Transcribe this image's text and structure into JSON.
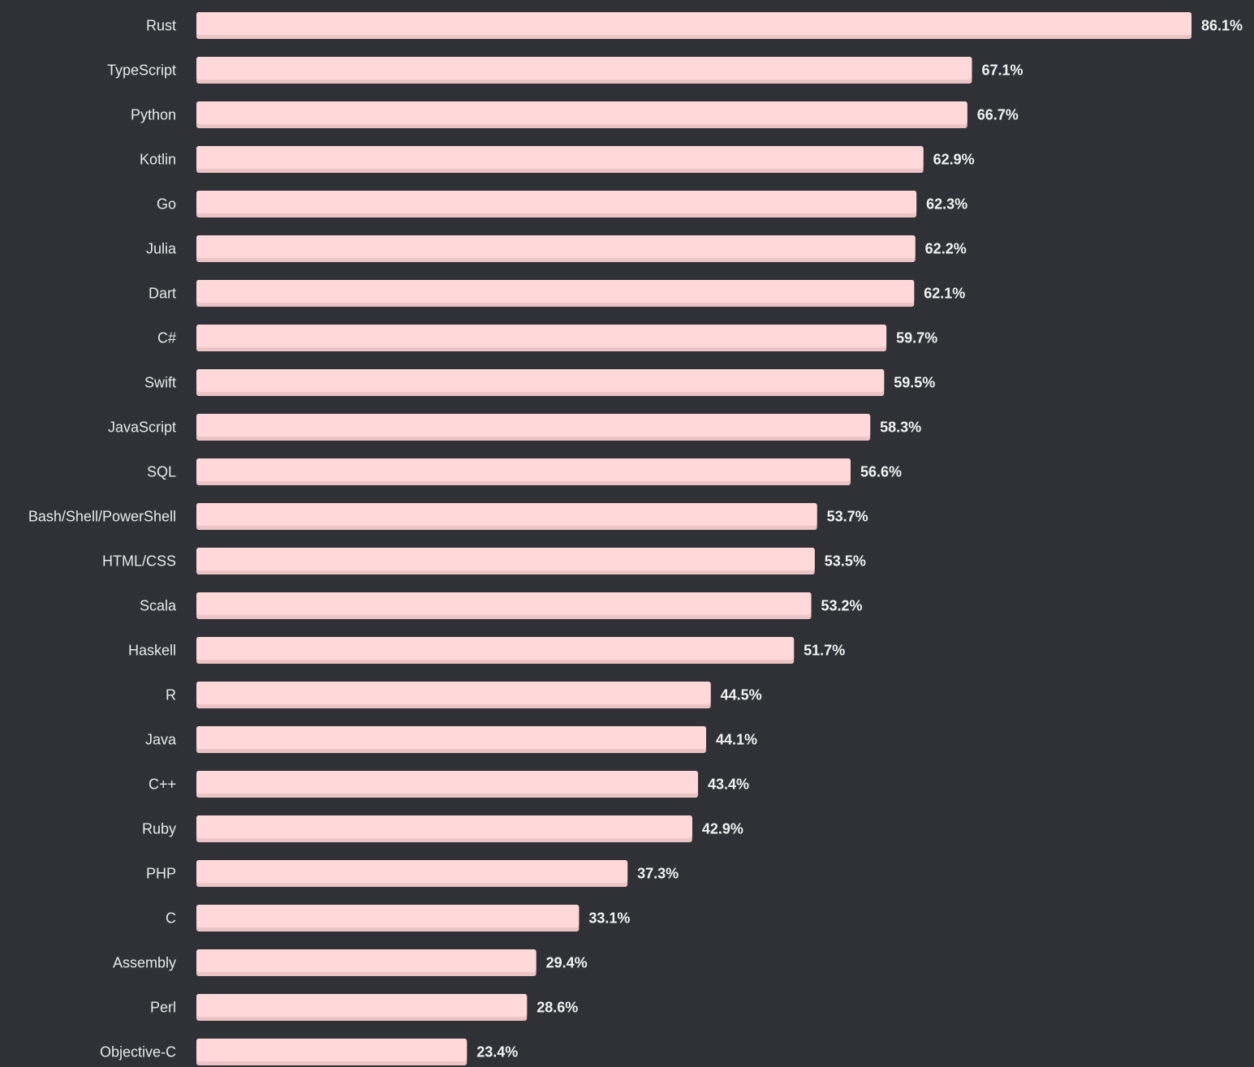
{
  "chart_data": {
    "type": "bar",
    "orientation": "horizontal",
    "categories": [
      "Rust",
      "TypeScript",
      "Python",
      "Kotlin",
      "Go",
      "Julia",
      "Dart",
      "C#",
      "Swift",
      "JavaScript",
      "SQL",
      "Bash/Shell/PowerShell",
      "HTML/CSS",
      "Scala",
      "Haskell",
      "R",
      "Java",
      "C++",
      "Ruby",
      "PHP",
      "C",
      "Assembly",
      "Perl",
      "Objective-C"
    ],
    "values": [
      86.1,
      67.1,
      66.7,
      62.9,
      62.3,
      62.2,
      62.1,
      59.7,
      59.5,
      58.3,
      56.6,
      53.7,
      53.5,
      53.2,
      51.7,
      44.5,
      44.1,
      43.4,
      42.9,
      37.3,
      33.1,
      29.4,
      28.6,
      23.4
    ],
    "value_labels": [
      "86.1%",
      "67.1%",
      "66.7%",
      "62.9%",
      "62.3%",
      "62.2%",
      "62.1%",
      "59.7%",
      "59.5%",
      "58.3%",
      "56.6%",
      "53.7%",
      "53.5%",
      "53.2%",
      "51.7%",
      "44.5%",
      "44.1%",
      "43.4%",
      "42.9%",
      "37.3%",
      "33.1%",
      "29.4%",
      "28.6%",
      "23.4%"
    ],
    "value_suffix": "%",
    "xlim": [
      0,
      86.1
    ],
    "grid": false,
    "colors": {
      "background": "#2f3136",
      "bar": "#ffd9d9",
      "bar_shade": "#ecc4c6",
      "label_text": "#e7e9eb",
      "value_text": "#f2f2f2"
    }
  }
}
